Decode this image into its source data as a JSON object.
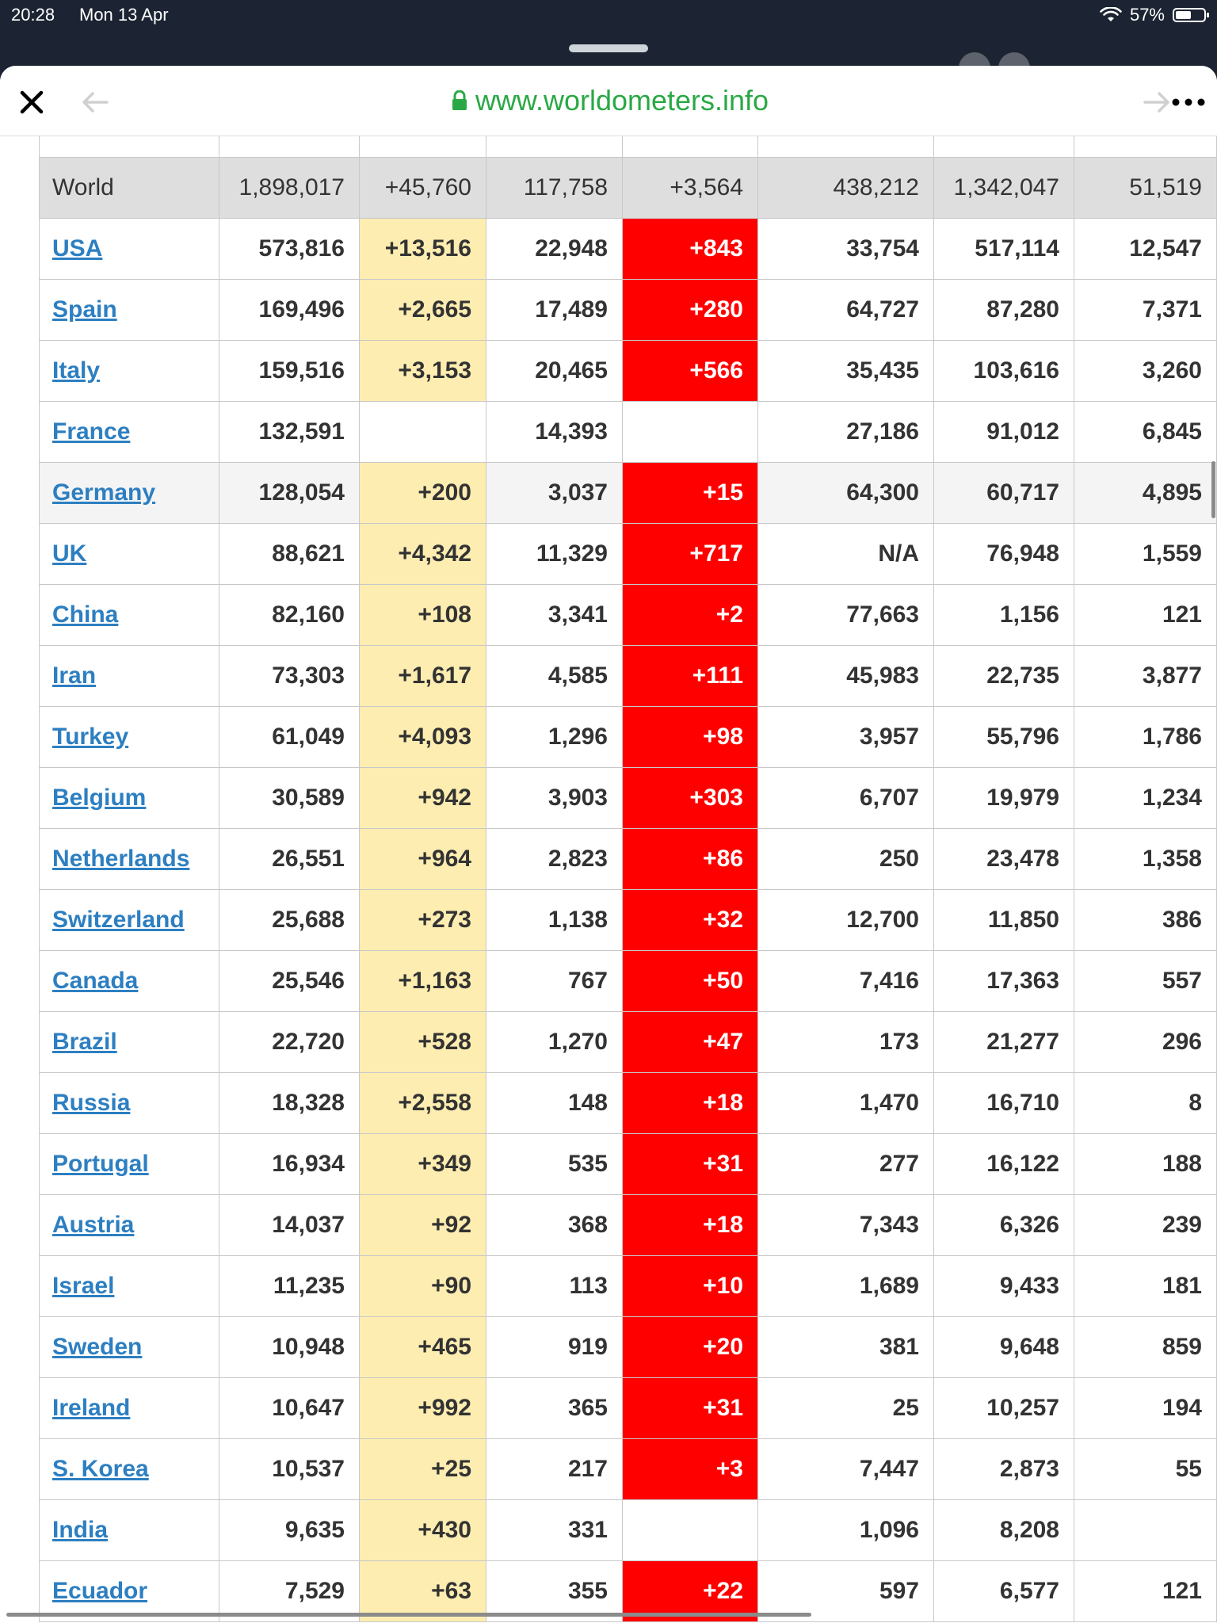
{
  "status_bar": {
    "time": "20:28",
    "date": "Mon 13 Apr",
    "battery": "57%",
    "battery_level": 0.57
  },
  "browser": {
    "url": "www.worldometers.info",
    "icons": {
      "close": "close-icon",
      "back": "back-arrow-icon",
      "forward": "forward-arrow-icon",
      "more": "more-icon",
      "lock": "lock-icon"
    },
    "url_color": "#2aa845"
  },
  "colors": {
    "new_cases_highlight": "#fdedb1",
    "new_deaths_highlight": "#ff0000",
    "country_link": "#2d7fc1",
    "world_row": "#dedede"
  },
  "table": {
    "world": {
      "country": "World",
      "total_cases": "1,898,017",
      "new_cases": "+45,760",
      "total_deaths": "117,758",
      "new_deaths": "+3,564",
      "total_recovered": "438,212",
      "active_cases": "1,342,047",
      "serious": "51,519"
    },
    "rows": [
      {
        "country": "USA",
        "total_cases": "573,816",
        "new_cases": "+13,516",
        "total_deaths": "22,948",
        "new_deaths": "+843",
        "total_recovered": "33,754",
        "active_cases": "517,114",
        "serious": "12,547"
      },
      {
        "country": "Spain",
        "total_cases": "169,496",
        "new_cases": "+2,665",
        "total_deaths": "17,489",
        "new_deaths": "+280",
        "total_recovered": "64,727",
        "active_cases": "87,280",
        "serious": "7,371"
      },
      {
        "country": "Italy",
        "total_cases": "159,516",
        "new_cases": "+3,153",
        "total_deaths": "20,465",
        "new_deaths": "+566",
        "total_recovered": "35,435",
        "active_cases": "103,616",
        "serious": "3,260"
      },
      {
        "country": "France",
        "total_cases": "132,591",
        "new_cases": "",
        "total_deaths": "14,393",
        "new_deaths": "",
        "total_recovered": "27,186",
        "active_cases": "91,012",
        "serious": "6,845"
      },
      {
        "country": "Germany",
        "total_cases": "128,054",
        "new_cases": "+200",
        "total_deaths": "3,037",
        "new_deaths": "+15",
        "total_recovered": "64,300",
        "active_cases": "60,717",
        "serious": "4,895"
      },
      {
        "country": "UK",
        "total_cases": "88,621",
        "new_cases": "+4,342",
        "total_deaths": "11,329",
        "new_deaths": "+717",
        "total_recovered": "N/A",
        "active_cases": "76,948",
        "serious": "1,559"
      },
      {
        "country": "China",
        "total_cases": "82,160",
        "new_cases": "+108",
        "total_deaths": "3,341",
        "new_deaths": "+2",
        "total_recovered": "77,663",
        "active_cases": "1,156",
        "serious": "121"
      },
      {
        "country": "Iran",
        "total_cases": "73,303",
        "new_cases": "+1,617",
        "total_deaths": "4,585",
        "new_deaths": "+111",
        "total_recovered": "45,983",
        "active_cases": "22,735",
        "serious": "3,877"
      },
      {
        "country": "Turkey",
        "total_cases": "61,049",
        "new_cases": "+4,093",
        "total_deaths": "1,296",
        "new_deaths": "+98",
        "total_recovered": "3,957",
        "active_cases": "55,796",
        "serious": "1,786"
      },
      {
        "country": "Belgium",
        "total_cases": "30,589",
        "new_cases": "+942",
        "total_deaths": "3,903",
        "new_deaths": "+303",
        "total_recovered": "6,707",
        "active_cases": "19,979",
        "serious": "1,234"
      },
      {
        "country": "Netherlands",
        "total_cases": "26,551",
        "new_cases": "+964",
        "total_deaths": "2,823",
        "new_deaths": "+86",
        "total_recovered": "250",
        "active_cases": "23,478",
        "serious": "1,358"
      },
      {
        "country": "Switzerland",
        "total_cases": "25,688",
        "new_cases": "+273",
        "total_deaths": "1,138",
        "new_deaths": "+32",
        "total_recovered": "12,700",
        "active_cases": "11,850",
        "serious": "386"
      },
      {
        "country": "Canada",
        "total_cases": "25,546",
        "new_cases": "+1,163",
        "total_deaths": "767",
        "new_deaths": "+50",
        "total_recovered": "7,416",
        "active_cases": "17,363",
        "serious": "557"
      },
      {
        "country": "Brazil",
        "total_cases": "22,720",
        "new_cases": "+528",
        "total_deaths": "1,270",
        "new_deaths": "+47",
        "total_recovered": "173",
        "active_cases": "21,277",
        "serious": "296"
      },
      {
        "country": "Russia",
        "total_cases": "18,328",
        "new_cases": "+2,558",
        "total_deaths": "148",
        "new_deaths": "+18",
        "total_recovered": "1,470",
        "active_cases": "16,710",
        "serious": "8"
      },
      {
        "country": "Portugal",
        "total_cases": "16,934",
        "new_cases": "+349",
        "total_deaths": "535",
        "new_deaths": "+31",
        "total_recovered": "277",
        "active_cases": "16,122",
        "serious": "188"
      },
      {
        "country": "Austria",
        "total_cases": "14,037",
        "new_cases": "+92",
        "total_deaths": "368",
        "new_deaths": "+18",
        "total_recovered": "7,343",
        "active_cases": "6,326",
        "serious": "239"
      },
      {
        "country": "Israel",
        "total_cases": "11,235",
        "new_cases": "+90",
        "total_deaths": "113",
        "new_deaths": "+10",
        "total_recovered": "1,689",
        "active_cases": "9,433",
        "serious": "181"
      },
      {
        "country": "Sweden",
        "total_cases": "10,948",
        "new_cases": "+465",
        "total_deaths": "919",
        "new_deaths": "+20",
        "total_recovered": "381",
        "active_cases": "9,648",
        "serious": "859"
      },
      {
        "country": "Ireland",
        "total_cases": "10,647",
        "new_cases": "+992",
        "total_deaths": "365",
        "new_deaths": "+31",
        "total_recovered": "25",
        "active_cases": "10,257",
        "serious": "194"
      },
      {
        "country": "S. Korea",
        "total_cases": "10,537",
        "new_cases": "+25",
        "total_deaths": "217",
        "new_deaths": "+3",
        "total_recovered": "7,447",
        "active_cases": "2,873",
        "serious": "55"
      },
      {
        "country": "India",
        "total_cases": "9,635",
        "new_cases": "+430",
        "total_deaths": "331",
        "new_deaths": "",
        "total_recovered": "1,096",
        "active_cases": "8,208",
        "serious": ""
      },
      {
        "country": "Ecuador",
        "total_cases": "7,529",
        "new_cases": "+63",
        "total_deaths": "355",
        "new_deaths": "+22",
        "total_recovered": "597",
        "active_cases": "6,577",
        "serious": "121"
      }
    ]
  }
}
